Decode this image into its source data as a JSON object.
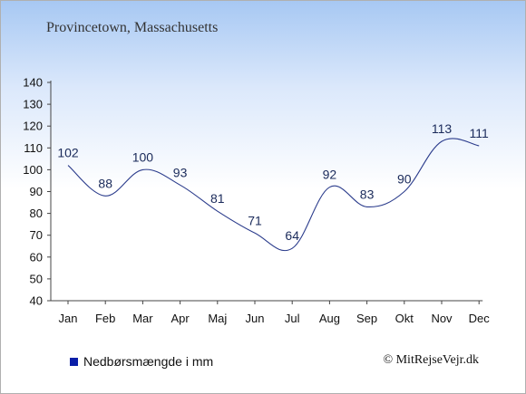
{
  "title": "Provincetown, Massachusetts",
  "legend": "Nedbørsmængde i mm",
  "copyright": "© MitRejseVejr.dk",
  "colors": {
    "line": "#2b3c8c",
    "swatch": "#0a1ea8",
    "axis": "#444444",
    "label": "#1a2a5a"
  },
  "chart_data": {
    "type": "line",
    "title": "Provincetown, Massachusetts",
    "xlabel": "",
    "ylabel": "",
    "categories": [
      "Jan",
      "Feb",
      "Mar",
      "Apr",
      "Maj",
      "Jun",
      "Jul",
      "Aug",
      "Sep",
      "Okt",
      "Nov",
      "Dec"
    ],
    "series": [
      {
        "name": "Nedbørsmængde i mm",
        "values": [
          102,
          88,
          100,
          93,
          81,
          71,
          64,
          92,
          83,
          90,
          113,
          111
        ]
      }
    ],
    "ylim": [
      40,
      140
    ],
    "yticks": [
      40,
      50,
      60,
      70,
      80,
      90,
      100,
      110,
      120,
      130,
      140
    ],
    "grid": false,
    "legend_position": "bottom-left"
  }
}
